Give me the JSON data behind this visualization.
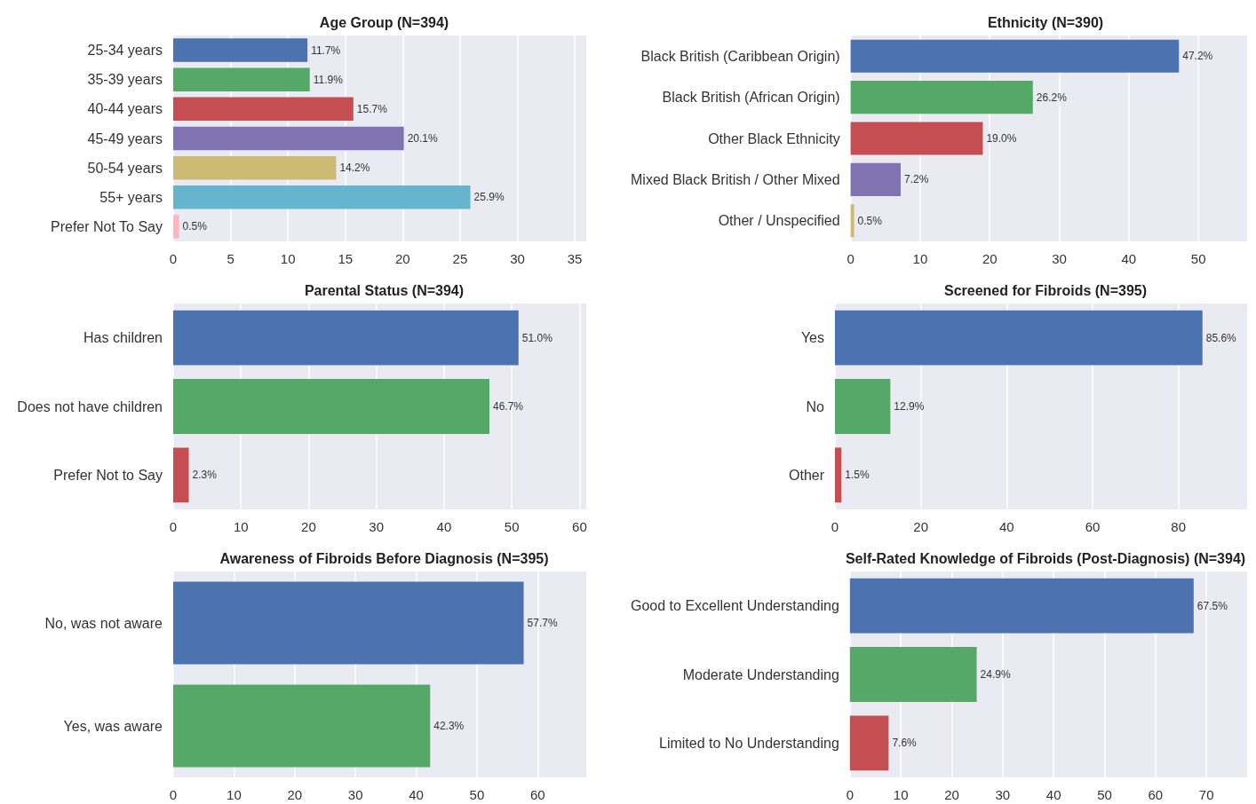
{
  "chart_data": [
    {
      "type": "bar",
      "orientation": "horizontal",
      "title": "Age Group (N=394)",
      "categories": [
        "25-34 years",
        "35-39 years",
        "40-44 years",
        "45-49 years",
        "50-54 years",
        "55+ years",
        "Prefer Not To Say"
      ],
      "values": [
        11.7,
        11.9,
        15.7,
        20.1,
        14.2,
        25.9,
        0.5
      ],
      "value_labels": [
        "11.7%",
        "11.9%",
        "15.7%",
        "20.1%",
        "14.2%",
        "25.9%",
        "0.5%"
      ],
      "colors": [
        "#4c72b0",
        "#55a868",
        "#c44e52",
        "#8172b2",
        "#ccb974",
        "#64b5cd",
        "#ffb6c1"
      ],
      "xlim": [
        0,
        36
      ],
      "xticks": [
        0,
        5,
        10,
        15,
        20,
        25,
        30,
        35
      ],
      "grid": "x"
    },
    {
      "type": "bar",
      "orientation": "horizontal",
      "title": "Ethnicity (N=390)",
      "categories": [
        "Black British (Caribbean Origin)",
        "Black British (African Origin)",
        "Other Black Ethnicity",
        "Mixed Black British / Other Mixed",
        "Other / Unspecified"
      ],
      "values": [
        47.2,
        26.2,
        19.0,
        7.2,
        0.5
      ],
      "value_labels": [
        "47.2%",
        "26.2%",
        "19.0%",
        "7.2%",
        "0.5%"
      ],
      "colors": [
        "#4c72b0",
        "#55a868",
        "#c44e52",
        "#8172b2",
        "#ccb974"
      ],
      "xlim": [
        0,
        57
      ],
      "xticks": [
        0,
        10,
        20,
        30,
        40,
        50
      ],
      "grid": "x"
    },
    {
      "type": "bar",
      "orientation": "horizontal",
      "title": "Parental Status (N=394)",
      "categories": [
        "Has children",
        "Does not have children",
        "Prefer Not to Say"
      ],
      "values": [
        51.0,
        46.7,
        2.3
      ],
      "value_labels": [
        "51.0%",
        "46.7%",
        "2.3%"
      ],
      "colors": [
        "#4c72b0",
        "#55a868",
        "#c44e52"
      ],
      "xlim": [
        0,
        61
      ],
      "xticks": [
        0,
        10,
        20,
        30,
        40,
        50,
        60
      ],
      "grid": "x"
    },
    {
      "type": "bar",
      "orientation": "horizontal",
      "title": "Screened for Fibroids (N=395)",
      "categories": [
        "Yes",
        "No",
        "Other"
      ],
      "values": [
        85.6,
        12.9,
        1.5
      ],
      "value_labels": [
        "85.6%",
        "12.9%",
        "1.5%"
      ],
      "colors": [
        "#4c72b0",
        "#55a868",
        "#c44e52"
      ],
      "xlim": [
        0,
        96
      ],
      "xticks": [
        0,
        20,
        40,
        60,
        80
      ],
      "grid": "x"
    },
    {
      "type": "bar",
      "orientation": "horizontal",
      "title": "Awareness of Fibroids Before Diagnosis (N=395)",
      "categories": [
        "No, was not aware",
        "Yes, was aware"
      ],
      "values": [
        57.7,
        42.3
      ],
      "value_labels": [
        "57.7%",
        "42.3%"
      ],
      "colors": [
        "#4c72b0",
        "#55a868"
      ],
      "xlim": [
        0,
        68
      ],
      "xticks": [
        0,
        10,
        20,
        30,
        40,
        50,
        60
      ],
      "grid": "x"
    },
    {
      "type": "bar",
      "orientation": "horizontal",
      "title": "Self-Rated Knowledge of Fibroids (Post-Diagnosis) (N=394)",
      "categories": [
        "Good to Excellent Understanding",
        "Moderate Understanding",
        "Limited to No Understanding"
      ],
      "values": [
        67.5,
        24.9,
        7.6
      ],
      "value_labels": [
        "67.5%",
        "24.9%",
        "7.6%"
      ],
      "colors": [
        "#4c72b0",
        "#55a868",
        "#c44e52"
      ],
      "xlim": [
        0,
        78
      ],
      "xticks": [
        0,
        10,
        20,
        30,
        40,
        50,
        60,
        70
      ],
      "grid": "x"
    }
  ]
}
